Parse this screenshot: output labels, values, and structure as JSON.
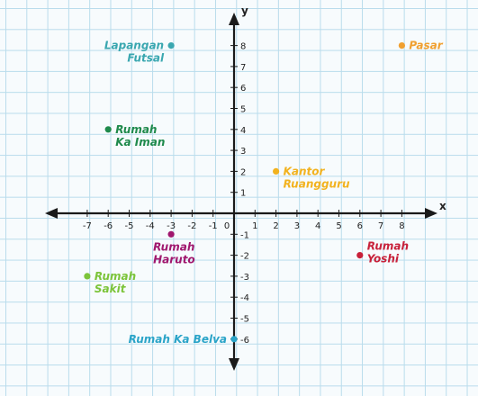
{
  "chart_data": {
    "type": "scatter",
    "xlabel": "x",
    "ylabel": "y",
    "xlim": [
      -8,
      9
    ],
    "ylim": [
      -7,
      9
    ],
    "x_ticks": [
      -7,
      -6,
      -5,
      -4,
      -3,
      -2,
      -1,
      1,
      2,
      3,
      4,
      5,
      6,
      7,
      8
    ],
    "y_ticks": [
      8,
      7,
      6,
      5,
      4,
      3,
      2,
      1,
      -1,
      -2,
      -3,
      -4,
      -5,
      -6
    ],
    "origin_label": "0",
    "grid": true,
    "points": [
      {
        "lines": [
          "Lapangan",
          "Futsal"
        ],
        "x": -3,
        "y": 8,
        "color": "#3aa7b0",
        "anchor": "left"
      },
      {
        "lines": [
          "Pasar"
        ],
        "x": 8,
        "y": 8,
        "color": "#f0a030",
        "anchor": "right"
      },
      {
        "lines": [
          "Rumah",
          "Ka Iman"
        ],
        "x": -6,
        "y": 4,
        "color": "#1f8a4c",
        "anchor": "right"
      },
      {
        "lines": [
          "Kantor",
          "Ruangguru"
        ],
        "x": 2,
        "y": 2,
        "color": "#f2b21e",
        "anchor": "right"
      },
      {
        "lines": [
          "Rumah",
          "Haruto"
        ],
        "x": -3,
        "y": -1,
        "color": "#a0176e",
        "anchor": "below"
      },
      {
        "lines": [
          "Rumah",
          "Yoshi"
        ],
        "x": 6,
        "y": -2,
        "color": "#c8213a",
        "anchor": "right-up"
      },
      {
        "lines": [
          "Rumah",
          "Sakit"
        ],
        "x": -7,
        "y": -3,
        "color": "#7cc43a",
        "anchor": "right"
      },
      {
        "lines": [
          "Rumah Ka Belva"
        ],
        "x": 0,
        "y": -6,
        "color": "#2aa4c8",
        "anchor": "left"
      }
    ]
  }
}
